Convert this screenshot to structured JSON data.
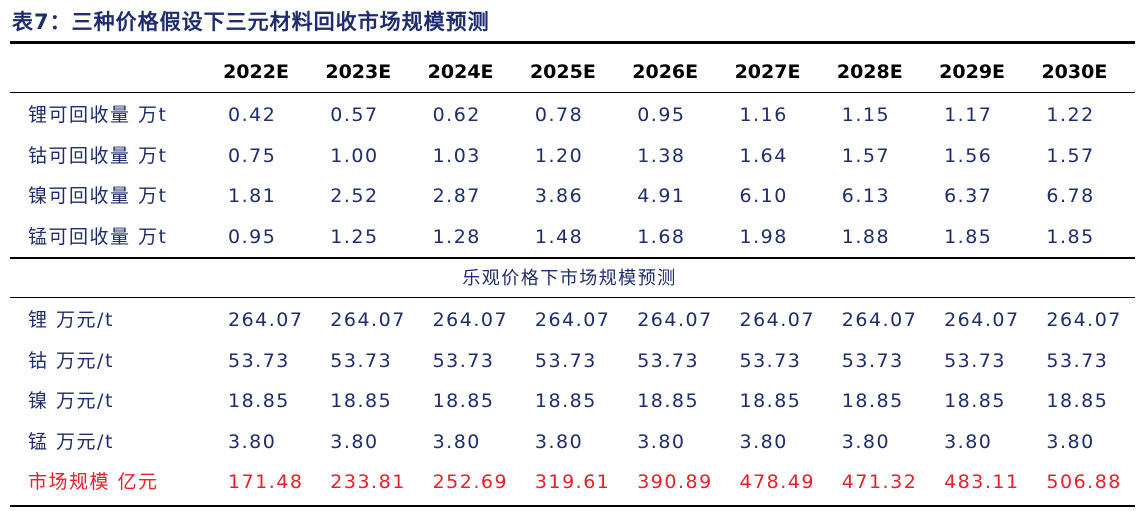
{
  "header": {
    "title": "表7：三种价格假设下三元材料回收市场规模预测"
  },
  "table": {
    "columns": [
      "2022E",
      "2023E",
      "2024E",
      "2025E",
      "2026E",
      "2027E",
      "2028E",
      "2029E",
      "2030E"
    ],
    "rows": [
      [
        "锂可回收量 万t",
        "0.42",
        "0.57",
        "0.62",
        "0.78",
        "0.95",
        "1.16",
        "1.15",
        "1.17",
        "1.22"
      ],
      [
        "钴可回收量 万t",
        "0.75",
        "1.00",
        "1.03",
        "1.20",
        "1.38",
        "1.64",
        "1.57",
        "1.56",
        "1.57"
      ],
      [
        "镍可回收量 万t",
        "1.81",
        "2.52",
        "2.87",
        "3.86",
        "4.91",
        "6.10",
        "6.13",
        "6.37",
        "6.78"
      ],
      [
        "锰可回收量 万t",
        "0.95",
        "1.25",
        "1.28",
        "1.48",
        "1.68",
        "1.98",
        "1.88",
        "1.85",
        "1.85"
      ]
    ]
  },
  "section": {
    "title": "乐观价格下市场规模预测",
    "rows": [
      [
        "锂 万元/t",
        "264.07",
        "264.07",
        "264.07",
        "264.07",
        "264.07",
        "264.07",
        "264.07",
        "264.07",
        "264.07"
      ],
      [
        "钴 万元/t",
        "53.73",
        "53.73",
        "53.73",
        "53.73",
        "53.73",
        "53.73",
        "53.73",
        "53.73",
        "53.73"
      ],
      [
        "镍 万元/t",
        "18.85",
        "18.85",
        "18.85",
        "18.85",
        "18.85",
        "18.85",
        "18.85",
        "18.85",
        "18.85"
      ],
      [
        "锰 万元/t",
        "3.80",
        "3.80",
        "3.80",
        "3.80",
        "3.80",
        "3.80",
        "3.80",
        "3.80",
        "3.80"
      ],
      [
        "市场规模 亿元",
        "171.48",
        "233.81",
        "252.69",
        "319.61",
        "390.89",
        "478.49",
        "471.32",
        "483.11",
        "506.88"
      ]
    ]
  }
}
